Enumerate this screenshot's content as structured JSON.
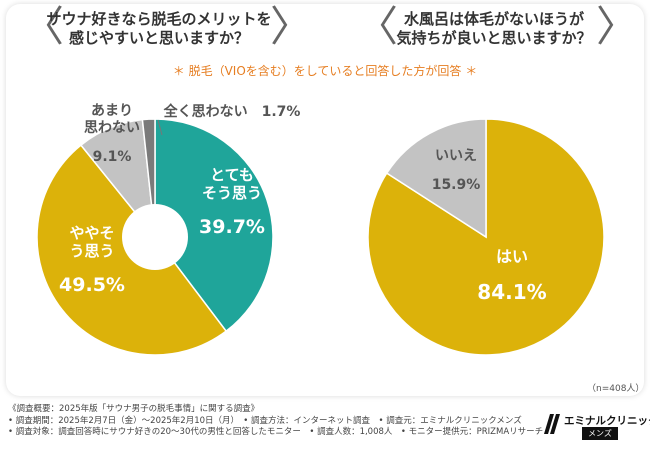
{
  "questions": {
    "q1": [
      "サウナ好きなら脱毛のメリットを",
      "感じやすいと思いますか？"
    ],
    "q2": [
      "水風呂は体毛がないほうが",
      "気持ちが良いと思いますか？"
    ]
  },
  "note": "＊ 脱毛（VIOを含む）をしていると回答した方が回答 ＊",
  "sample": "（n=408人）",
  "chart_data": [
    {
      "type": "pie",
      "donut": true,
      "title": "サウナ好きなら脱毛のメリットを感じやすいと思いますか？",
      "slices": [
        {
          "label": "とてもそう思う",
          "value": 39.7,
          "display": "39.7%",
          "color": "#1fa59a",
          "label_color": "#ffffff"
        },
        {
          "label": "ややそう思う",
          "value": 49.5,
          "display": "49.5%",
          "color": "#dcb20a",
          "label_color": "#ffffff"
        },
        {
          "label": "あまり思わない",
          "value": 9.1,
          "display": "9.1%",
          "color": "#c3c3c3",
          "label_color": "#555555"
        },
        {
          "label": "全く思わない",
          "value": 1.7,
          "display": "1.7%",
          "color": "#7a7a7a",
          "label_color": "#555555"
        }
      ]
    },
    {
      "type": "pie",
      "donut": false,
      "title": "水風呂は体毛がないほうが気持ちが良いと思いますか？",
      "slices": [
        {
          "label": "はい",
          "value": 84.1,
          "display": "84.1%",
          "color": "#dcb20a",
          "label_color": "#ffffff"
        },
        {
          "label": "いいえ",
          "value": 15.9,
          "display": "15.9%",
          "color": "#c3c3c3",
          "label_color": "#555555"
        }
      ]
    }
  ],
  "footer": [
    "《調査概要：2025年版「サウナ男子の脱毛事情」に関する調査》",
    "• 調査期間：2025年2月7日（金）〜2025年2月10日（月）　• 調査方法：インターネット調査　• 調査元：エミナルクリニックメンズ",
    "• 調査対象：調査回答時にサウナ好きの20〜30代の男性と回答したモニター　• 調査人数：1,008人　• モニター提供元：PRIZMAリサーチ"
  ],
  "logo": {
    "name": "エミナルクリニック",
    "sub": "メンズ"
  }
}
